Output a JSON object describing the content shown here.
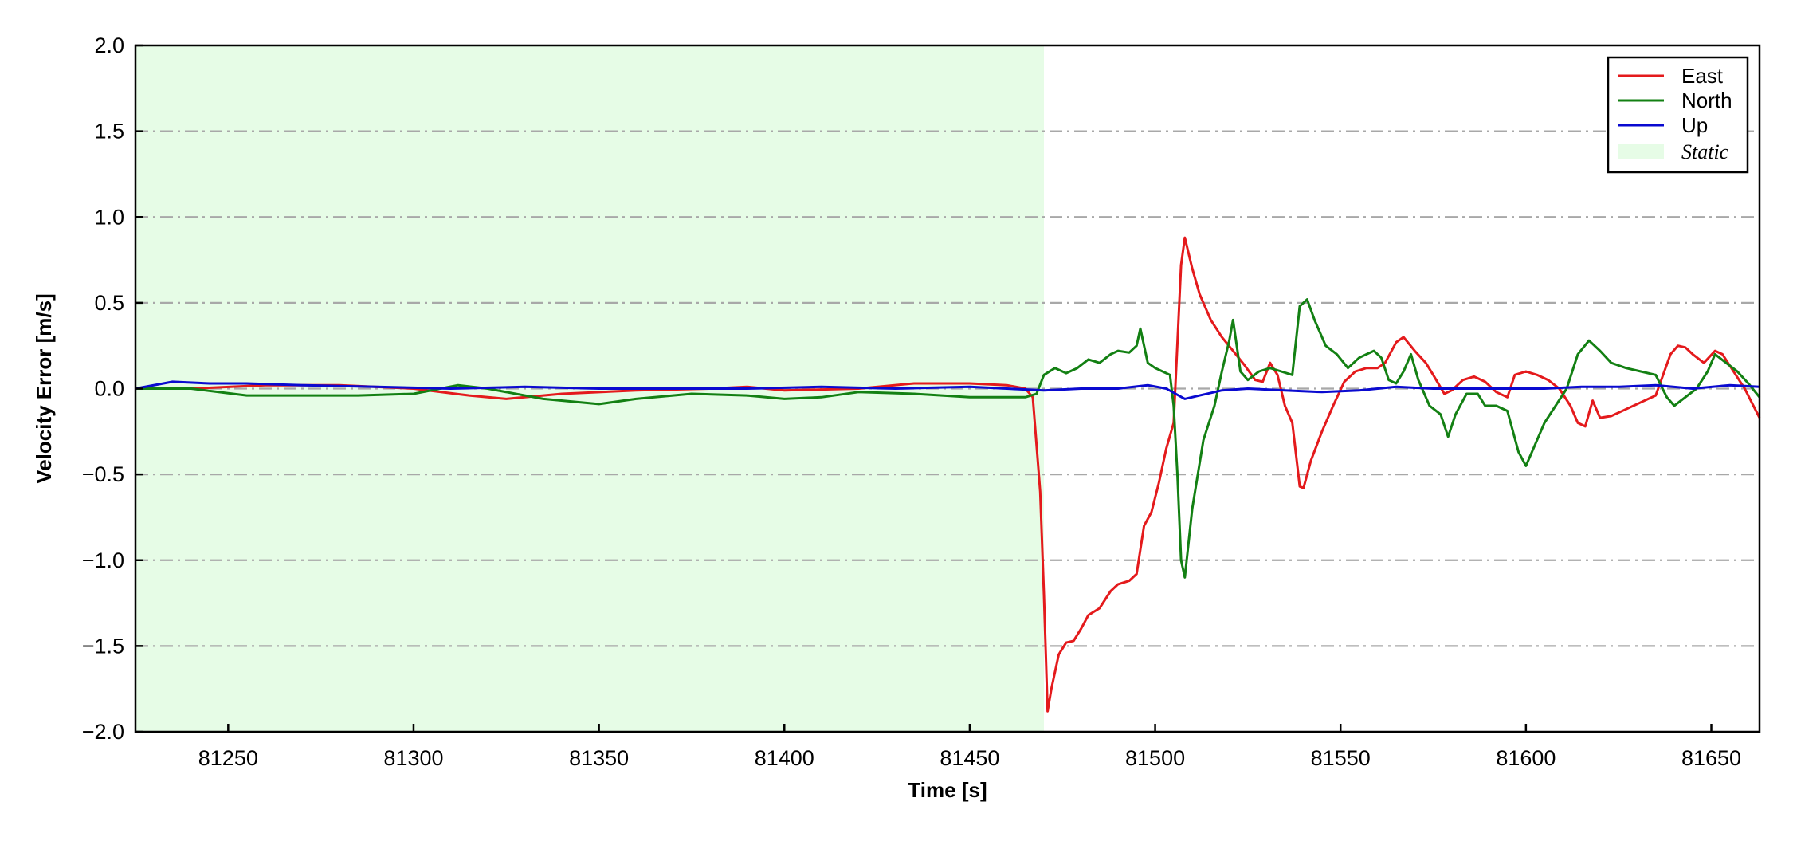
{
  "chart_data": {
    "type": "line",
    "title": "",
    "xlabel": "Time [s]",
    "ylabel": "Velocity Error [m/s]",
    "xlim": [
      81225,
      81663
    ],
    "ylim": [
      -2.0,
      2.0
    ],
    "x_ticks": [
      81250,
      81300,
      81350,
      81400,
      81450,
      81500,
      81550,
      81600,
      81650
    ],
    "x_tick_labels": [
      "81250",
      "81300",
      "81350",
      "81400",
      "81450",
      "81500",
      "81550",
      "81600",
      "81650"
    ],
    "y_ticks": [
      2.0,
      1.5,
      1.0,
      0.5,
      0.0,
      -0.5,
      -1.0,
      -1.5,
      -2.0
    ],
    "y_tick_labels": [
      "2.0",
      "1.5",
      "1.0",
      "0.5",
      "0.0",
      "−0.5",
      "−1.0",
      "−1.5",
      "−2.0"
    ],
    "grid": "horizontal dash-dot",
    "legend_position": "top-right",
    "static_region": {
      "label": "Static",
      "x_start": 81225,
      "x_end": 81470,
      "color": "#e6fce6"
    },
    "series": [
      {
        "name": "East",
        "color": "#e41a1c",
        "points": [
          [
            81225,
            0.0
          ],
          [
            81240,
            0.0
          ],
          [
            81260,
            0.02
          ],
          [
            81280,
            0.02
          ],
          [
            81300,
            0.0
          ],
          [
            81315,
            -0.04
          ],
          [
            81325,
            -0.06
          ],
          [
            81340,
            -0.03
          ],
          [
            81360,
            -0.01
          ],
          [
            81380,
            0.0
          ],
          [
            81390,
            0.01
          ],
          [
            81400,
            -0.01
          ],
          [
            81420,
            0.0
          ],
          [
            81435,
            0.03
          ],
          [
            81450,
            0.03
          ],
          [
            81460,
            0.02
          ],
          [
            81465,
            0.0
          ],
          [
            81467,
            -0.05
          ],
          [
            81469,
            -0.6
          ],
          [
            81470,
            -1.2
          ],
          [
            81471,
            -1.88
          ],
          [
            81472,
            -1.75
          ],
          [
            81474,
            -1.55
          ],
          [
            81476,
            -1.48
          ],
          [
            81478,
            -1.47
          ],
          [
            81480,
            -1.4
          ],
          [
            81482,
            -1.32
          ],
          [
            81485,
            -1.28
          ],
          [
            81488,
            -1.18
          ],
          [
            81490,
            -1.14
          ],
          [
            81493,
            -1.12
          ],
          [
            81495,
            -1.08
          ],
          [
            81497,
            -0.8
          ],
          [
            81499,
            -0.72
          ],
          [
            81501,
            -0.55
          ],
          [
            81503,
            -0.35
          ],
          [
            81505,
            -0.2
          ],
          [
            81507,
            0.72
          ],
          [
            81508,
            0.88
          ],
          [
            81510,
            0.7
          ],
          [
            81512,
            0.55
          ],
          [
            81515,
            0.4
          ],
          [
            81518,
            0.3
          ],
          [
            81521,
            0.22
          ],
          [
            81524,
            0.14
          ],
          [
            81527,
            0.05
          ],
          [
            81529,
            0.04
          ],
          [
            81531,
            0.15
          ],
          [
            81533,
            0.08
          ],
          [
            81535,
            -0.1
          ],
          [
            81537,
            -0.2
          ],
          [
            81539,
            -0.57
          ],
          [
            81540,
            -0.58
          ],
          [
            81542,
            -0.42
          ],
          [
            81545,
            -0.25
          ],
          [
            81548,
            -0.1
          ],
          [
            81551,
            0.04
          ],
          [
            81554,
            0.1
          ],
          [
            81557,
            0.12
          ],
          [
            81560,
            0.12
          ],
          [
            81562,
            0.15
          ],
          [
            81565,
            0.27
          ],
          [
            81567,
            0.3
          ],
          [
            81570,
            0.22
          ],
          [
            81573,
            0.15
          ],
          [
            81575,
            0.08
          ],
          [
            81578,
            -0.03
          ],
          [
            81580,
            -0.01
          ],
          [
            81583,
            0.05
          ],
          [
            81586,
            0.07
          ],
          [
            81589,
            0.04
          ],
          [
            81592,
            -0.02
          ],
          [
            81595,
            -0.05
          ],
          [
            81597,
            0.08
          ],
          [
            81600,
            0.1
          ],
          [
            81603,
            0.08
          ],
          [
            81606,
            0.05
          ],
          [
            81609,
            0.0
          ],
          [
            81612,
            -0.1
          ],
          [
            81614,
            -0.2
          ],
          [
            81616,
            -0.22
          ],
          [
            81618,
            -0.07
          ],
          [
            81620,
            -0.17
          ],
          [
            81623,
            -0.16
          ],
          [
            81627,
            -0.12
          ],
          [
            81631,
            -0.08
          ],
          [
            81635,
            -0.04
          ],
          [
            81639,
            0.2
          ],
          [
            81641,
            0.25
          ],
          [
            81643,
            0.24
          ],
          [
            81645,
            0.2
          ],
          [
            81648,
            0.15
          ],
          [
            81651,
            0.22
          ],
          [
            81653,
            0.2
          ],
          [
            81656,
            0.1
          ],
          [
            81659,
            0.0
          ],
          [
            81663,
            -0.17
          ]
        ]
      },
      {
        "name": "North",
        "color": "#138013",
        "points": [
          [
            81225,
            0.0
          ],
          [
            81240,
            0.0
          ],
          [
            81255,
            -0.04
          ],
          [
            81270,
            -0.04
          ],
          [
            81285,
            -0.04
          ],
          [
            81300,
            -0.03
          ],
          [
            81312,
            0.02
          ],
          [
            81320,
            0.0
          ],
          [
            81335,
            -0.06
          ],
          [
            81350,
            -0.09
          ],
          [
            81360,
            -0.06
          ],
          [
            81375,
            -0.03
          ],
          [
            81390,
            -0.04
          ],
          [
            81400,
            -0.06
          ],
          [
            81410,
            -0.05
          ],
          [
            81420,
            -0.02
          ],
          [
            81435,
            -0.03
          ],
          [
            81450,
            -0.05
          ],
          [
            81465,
            -0.05
          ],
          [
            81468,
            -0.03
          ],
          [
            81470,
            0.08
          ],
          [
            81473,
            0.12
          ],
          [
            81476,
            0.09
          ],
          [
            81479,
            0.12
          ],
          [
            81482,
            0.17
          ],
          [
            81485,
            0.15
          ],
          [
            81488,
            0.2
          ],
          [
            81490,
            0.22
          ],
          [
            81493,
            0.21
          ],
          [
            81495,
            0.25
          ],
          [
            81496,
            0.35
          ],
          [
            81498,
            0.15
          ],
          [
            81500,
            0.12
          ],
          [
            81502,
            0.1
          ],
          [
            81504,
            0.08
          ],
          [
            81505,
            -0.1
          ],
          [
            81506,
            -0.5
          ],
          [
            81507,
            -1.0
          ],
          [
            81508,
            -1.1
          ],
          [
            81510,
            -0.7
          ],
          [
            81513,
            -0.3
          ],
          [
            81516,
            -0.1
          ],
          [
            81518,
            0.1
          ],
          [
            81520,
            0.28
          ],
          [
            81521,
            0.4
          ],
          [
            81523,
            0.1
          ],
          [
            81525,
            0.05
          ],
          [
            81528,
            0.1
          ],
          [
            81531,
            0.12
          ],
          [
            81534,
            0.1
          ],
          [
            81537,
            0.08
          ],
          [
            81539,
            0.48
          ],
          [
            81541,
            0.52
          ],
          [
            81543,
            0.4
          ],
          [
            81546,
            0.25
          ],
          [
            81549,
            0.2
          ],
          [
            81552,
            0.12
          ],
          [
            81555,
            0.18
          ],
          [
            81557,
            0.2
          ],
          [
            81559,
            0.22
          ],
          [
            81561,
            0.18
          ],
          [
            81563,
            0.05
          ],
          [
            81565,
            0.03
          ],
          [
            81567,
            0.1
          ],
          [
            81569,
            0.2
          ],
          [
            81571,
            0.05
          ],
          [
            81574,
            -0.1
          ],
          [
            81577,
            -0.15
          ],
          [
            81579,
            -0.28
          ],
          [
            81581,
            -0.15
          ],
          [
            81584,
            -0.03
          ],
          [
            81587,
            -0.03
          ],
          [
            81589,
            -0.1
          ],
          [
            81592,
            -0.1
          ],
          [
            81595,
            -0.13
          ],
          [
            81598,
            -0.37
          ],
          [
            81600,
            -0.45
          ],
          [
            81602,
            -0.35
          ],
          [
            81605,
            -0.2
          ],
          [
            81608,
            -0.1
          ],
          [
            81611,
            0.0
          ],
          [
            81614,
            0.2
          ],
          [
            81617,
            0.28
          ],
          [
            81620,
            0.22
          ],
          [
            81623,
            0.15
          ],
          [
            81627,
            0.12
          ],
          [
            81631,
            0.1
          ],
          [
            81635,
            0.08
          ],
          [
            81638,
            -0.05
          ],
          [
            81640,
            -0.1
          ],
          [
            81643,
            -0.05
          ],
          [
            81646,
            0.0
          ],
          [
            81649,
            0.1
          ],
          [
            81651,
            0.2
          ],
          [
            81654,
            0.15
          ],
          [
            81657,
            0.1
          ],
          [
            81660,
            0.03
          ],
          [
            81663,
            -0.05
          ]
        ]
      },
      {
        "name": "Up",
        "color": "#0a0ad0",
        "points": [
          [
            81225,
            0.0
          ],
          [
            81235,
            0.04
          ],
          [
            81245,
            0.03
          ],
          [
            81255,
            0.03
          ],
          [
            81270,
            0.02
          ],
          [
            81290,
            0.01
          ],
          [
            81310,
            0.0
          ],
          [
            81330,
            0.01
          ],
          [
            81350,
            0.0
          ],
          [
            81370,
            0.0
          ],
          [
            81390,
            0.0
          ],
          [
            81410,
            0.01
          ],
          [
            81430,
            0.0
          ],
          [
            81450,
            0.01
          ],
          [
            81460,
            0.0
          ],
          [
            81470,
            -0.01
          ],
          [
            81480,
            0.0
          ],
          [
            81490,
            0.0
          ],
          [
            81498,
            0.02
          ],
          [
            81503,
            0.0
          ],
          [
            81508,
            -0.06
          ],
          [
            81512,
            -0.04
          ],
          [
            81518,
            -0.01
          ],
          [
            81525,
            0.0
          ],
          [
            81535,
            -0.01
          ],
          [
            81545,
            -0.02
          ],
          [
            81555,
            -0.01
          ],
          [
            81565,
            0.01
          ],
          [
            81575,
            0.0
          ],
          [
            81585,
            0.0
          ],
          [
            81595,
            0.0
          ],
          [
            81605,
            0.0
          ],
          [
            81615,
            0.01
          ],
          [
            81625,
            0.01
          ],
          [
            81635,
            0.02
          ],
          [
            81645,
            0.0
          ],
          [
            81655,
            0.02
          ],
          [
            81663,
            0.01
          ]
        ]
      }
    ]
  }
}
